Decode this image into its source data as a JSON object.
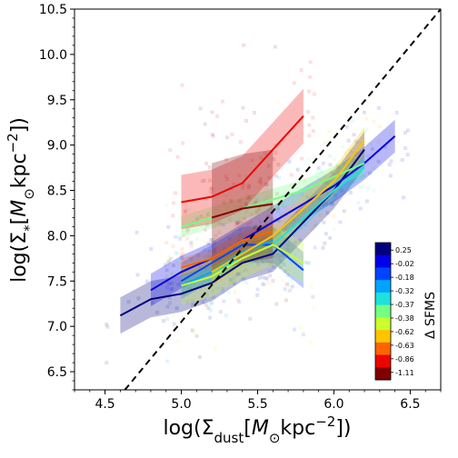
{
  "chart_data": {
    "type": "line",
    "title": "",
    "xlabel": "log(Σ_dust[M_⊙kpc^-2])",
    "ylabel": "log(Σ_*[M_⊙kpc^-2])",
    "xlim": [
      4.3,
      6.7
    ],
    "ylim": [
      6.3,
      10.5
    ],
    "x_ticks": [
      4.5,
      5.0,
      5.5,
      6.0,
      6.5
    ],
    "x_tick_labels": [
      "4.5",
      "5.0",
      "5.5",
      "6.0",
      "6.5"
    ],
    "y_ticks": [
      6.5,
      7.0,
      7.5,
      8.0,
      8.5,
      9.0,
      9.5,
      10.0,
      10.5
    ],
    "y_tick_labels": [
      "6.5",
      "7.0",
      "7.5",
      "8.0",
      "8.5",
      "9.0",
      "9.5",
      "10.0",
      "10.5"
    ],
    "grid": false,
    "one_to_one_line": {
      "x": [
        4.63,
        6.7
      ],
      "y": [
        6.3,
        10.5
      ],
      "style": "dashed",
      "color": "#000000"
    },
    "colorbar": {
      "title": "Δ SFMS",
      "placement": "lower-right inset",
      "labels": [
        "0.25",
        "-0.02",
        "-0.18",
        "-0.32",
        "-0.37",
        "-0.38",
        "-0.62",
        "-0.63",
        "-0.86",
        "-1.11"
      ],
      "colors": [
        "#00007f",
        "#0000e6",
        "#0044ff",
        "#00a4ff",
        "#1ee1db",
        "#74ff83",
        "#c9ff2e",
        "#ffc400",
        "#ff6400",
        "#ed0400",
        "#7f0000"
      ]
    },
    "series": [
      {
        "color": "#00007f",
        "band": 0.2,
        "x": [
          4.6,
          4.8,
          5.0,
          5.2,
          5.4,
          5.6,
          5.8,
          6.0,
          6.2
        ],
        "y": [
          7.12,
          7.3,
          7.36,
          7.48,
          7.7,
          7.8,
          8.15,
          8.5,
          8.95
        ]
      },
      {
        "color": "#0000e6",
        "band": 0.18,
        "x": [
          4.8,
          5.0,
          5.2,
          5.4,
          5.6,
          5.8,
          6.0,
          6.2,
          6.4
        ],
        "y": [
          7.4,
          7.6,
          7.75,
          7.95,
          8.15,
          8.35,
          8.55,
          8.8,
          9.1
        ]
      },
      {
        "color": "#0044ff",
        "band": 0.2,
        "x": [
          5.0,
          5.2,
          5.4,
          5.6,
          5.8
        ],
        "y": [
          7.5,
          7.7,
          7.9,
          7.9,
          7.62
        ]
      },
      {
        "color": "#00a4ff",
        "band": 0.12,
        "x": [
          5.0,
          5.2,
          5.4,
          5.6
        ],
        "y": [
          7.45,
          7.6,
          7.82,
          7.95
        ]
      },
      {
        "color": "#1ee1db",
        "band": 0.1,
        "x": [
          5.2,
          5.4,
          5.6,
          5.8,
          6.0,
          6.2
        ],
        "y": [
          7.6,
          7.75,
          7.9,
          8.2,
          8.5,
          8.75
        ]
      },
      {
        "color": "#74ff83",
        "band": 0.12,
        "x": [
          5.0,
          5.2,
          5.4,
          5.6,
          5.8,
          6.0,
          6.2
        ],
        "y": [
          8.1,
          8.2,
          8.3,
          8.4,
          8.5,
          8.65,
          8.8
        ]
      },
      {
        "color": "#c9ff2e",
        "band": 0.22,
        "x": [
          5.0,
          5.2,
          5.4,
          5.6,
          5.8
        ],
        "y": [
          7.45,
          7.55,
          7.75,
          7.9,
          7.7
        ]
      },
      {
        "color": "#ffc400",
        "band": 0.15,
        "x": [
          5.2,
          5.4,
          5.6,
          5.8,
          6.0,
          6.2
        ],
        "y": [
          7.6,
          7.8,
          8.0,
          8.3,
          8.6,
          9.05
        ]
      },
      {
        "color": "#ff6400",
        "band": 0.1,
        "x": [
          5.0,
          5.2,
          5.4,
          5.6
        ],
        "y": [
          7.65,
          7.75,
          7.95,
          8.05
        ]
      },
      {
        "color": "#ed0400",
        "band": 0.3,
        "x": [
          5.0,
          5.2,
          5.4,
          5.6,
          5.8
        ],
        "y": [
          8.37,
          8.43,
          8.58,
          8.95,
          9.32
        ]
      },
      {
        "color": "#7f0000",
        "band": 0.6,
        "x": [
          5.2,
          5.4,
          5.6
        ],
        "y": [
          8.2,
          8.3,
          8.35
        ]
      }
    ]
  }
}
